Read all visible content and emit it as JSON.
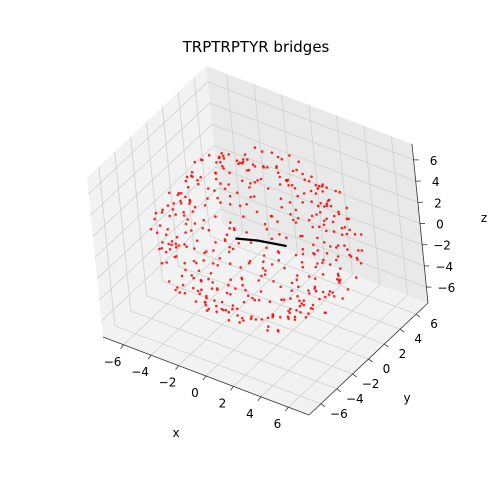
{
  "chart_data": {
    "type": "scatter3d",
    "title": "TRPTRPTYR bridges",
    "xlabel": "x",
    "ylabel": "y",
    "zlabel": "z",
    "xlim": [
      -7.5,
      7.5
    ],
    "ylim": [
      -7.5,
      7.5
    ],
    "zlim": [
      -7.5,
      7.5
    ],
    "xticks": [
      "−6",
      "−4",
      "−2",
      "0",
      "2",
      "4",
      "6"
    ],
    "yticks": [
      "−6",
      "−4",
      "−2",
      "0",
      "2",
      "4",
      "6"
    ],
    "zticks": [
      "−6",
      "−4",
      "−2",
      "0",
      "2",
      "4",
      "6"
    ],
    "grid": true,
    "series": [
      {
        "kind": "points",
        "color": "#ff0000",
        "point_count": 420,
        "shape": "spherical shell",
        "radius": 6.5
      },
      {
        "kind": "line",
        "color": "#000000",
        "points": [
          [
            -1.0,
            -1.0,
            0.4
          ],
          [
            0.0,
            0.0,
            0.0
          ],
          [
            1.5,
            1.0,
            -0.5
          ]
        ]
      }
    ]
  }
}
